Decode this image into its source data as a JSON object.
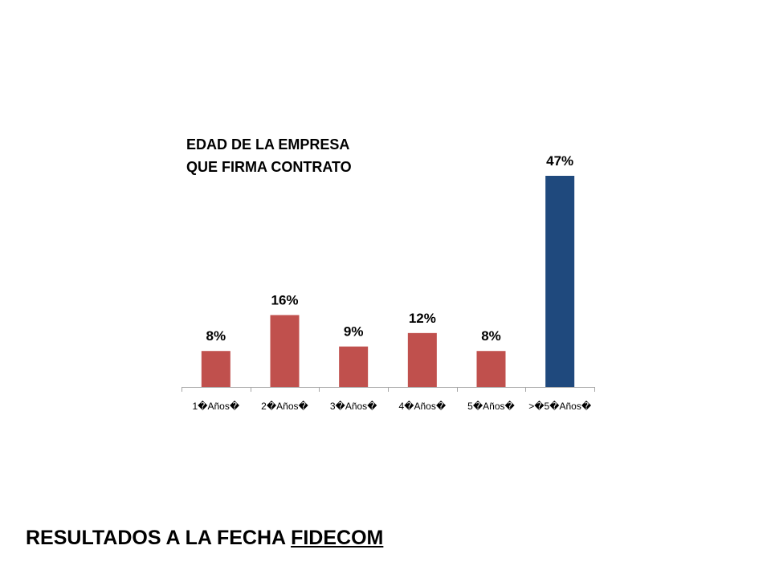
{
  "slide": {
    "footer": {
      "prefix": "RESULTADOS A LA FECHA ",
      "underlined": "FIDECOM"
    }
  },
  "chart_data": {
    "type": "bar",
    "title_lines": [
      "EDAD DE LA EMPRESA",
      "QUE FIRMA CONTRATO"
    ],
    "categories": [
      "1�Años�",
      "2�Años�",
      "3�Años�",
      "4�Años�",
      "5�Años�",
      ">�5�Años�"
    ],
    "values": [
      8,
      16,
      9,
      12,
      8,
      47
    ],
    "data_labels": [
      "8%",
      "16%",
      "9%",
      "12%",
      "8%",
      "47%"
    ],
    "colors": [
      "#c0504d",
      "#c0504d",
      "#c0504d",
      "#c0504d",
      "#c0504d",
      "#1f497d"
    ],
    "axis_color": "#a6a6a6",
    "xlabel": "",
    "ylabel": "",
    "ylim": [
      0,
      50
    ],
    "grid": false,
    "legend": "none"
  }
}
